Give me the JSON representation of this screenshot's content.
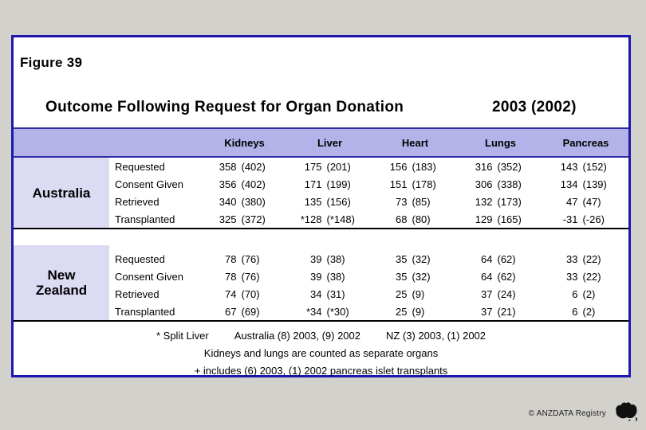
{
  "slide": {
    "figure_label": "Figure 39",
    "title": "Outcome Following Request for Organ Donation",
    "year": "2003 (2002)"
  },
  "colors": {
    "slide_border": "#1c18ae",
    "header_band": "#b3b2e9",
    "country_cell": "#dcdbf4",
    "page_background": "#d3d1cc"
  },
  "table": {
    "columns": [
      "Kidneys",
      "Liver",
      "Heart",
      "Lungs",
      "Pancreas"
    ],
    "row_labels": [
      "Requested",
      "Consent Given",
      "Retrieved",
      "Transplanted"
    ],
    "groups": [
      {
        "country": "Australia",
        "rows": [
          {
            "label": "Requested",
            "cells": [
              {
                "v": "358",
                "p": "(402)"
              },
              {
                "v": "175",
                "p": "(201)"
              },
              {
                "v": "156",
                "p": "(183)"
              },
              {
                "v": "316",
                "p": "(352)"
              },
              {
                "v": "143",
                "p": "(152)"
              }
            ]
          },
          {
            "label": "Consent Given",
            "cells": [
              {
                "v": "356",
                "p": "(402)"
              },
              {
                "v": "171",
                "p": "(199)"
              },
              {
                "v": "151",
                "p": "(178)"
              },
              {
                "v": "306",
                "p": "(338)"
              },
              {
                "v": "134",
                "p": "(139)"
              }
            ]
          },
          {
            "label": "Retrieved",
            "cells": [
              {
                "v": "340",
                "p": "(380)"
              },
              {
                "v": "135",
                "p": "(156)"
              },
              {
                "v": "73",
                "p": "(85)"
              },
              {
                "v": "132",
                "p": "(173)"
              },
              {
                "v": "47",
                "p": "(47)"
              }
            ]
          },
          {
            "label": "Transplanted",
            "cells": [
              {
                "v": "325",
                "p": "(372)"
              },
              {
                "v": "*128",
                "p": "(*148)"
              },
              {
                "v": "68",
                "p": "(80)"
              },
              {
                "v": "129",
                "p": "(165)"
              },
              {
                "v": "-31",
                "p": "(-26)"
              }
            ]
          }
        ]
      },
      {
        "country": "New Zealand",
        "rows": [
          {
            "label": "Requested",
            "cells": [
              {
                "v": "78",
                "p": "(76)"
              },
              {
                "v": "39",
                "p": "(38)"
              },
              {
                "v": "35",
                "p": "(32)"
              },
              {
                "v": "64",
                "p": "(62)"
              },
              {
                "v": "33",
                "p": "(22)"
              }
            ]
          },
          {
            "label": "Consent Given",
            "cells": [
              {
                "v": "78",
                "p": "(76)"
              },
              {
                "v": "39",
                "p": "(38)"
              },
              {
                "v": "35",
                "p": "(32)"
              },
              {
                "v": "64",
                "p": "(62)"
              },
              {
                "v": "33",
                "p": "(22)"
              }
            ]
          },
          {
            "label": "Retrieved",
            "cells": [
              {
                "v": "74",
                "p": "(70)"
              },
              {
                "v": "34",
                "p": "(31)"
              },
              {
                "v": "25",
                "p": "(9)"
              },
              {
                "v": "37",
                "p": "(24)"
              },
              {
                "v": "6",
                "p": "(2)"
              }
            ]
          },
          {
            "label": "Transplanted",
            "cells": [
              {
                "v": "67",
                "p": "(69)"
              },
              {
                "v": "*34",
                "p": "(*30)"
              },
              {
                "v": "25",
                "p": "(9)"
              },
              {
                "v": "37",
                "p": "(21)"
              },
              {
                "v": "6",
                "p": "(2)"
              }
            ]
          }
        ]
      }
    ]
  },
  "footnotes": {
    "line1_parts": [
      "* Split Liver",
      "Australia (8) 2003, (9) 2002",
      "NZ (3) 2003, (1) 2002"
    ],
    "line2": "Kidneys and lungs are counted as separate organs",
    "line3": "+ includes (6) 2003, (1) 2002 pancreas islet transplants"
  },
  "footer": {
    "copyright": "© ANZDATA Registry",
    "logo": "anzdata-australia-map-icon"
  }
}
